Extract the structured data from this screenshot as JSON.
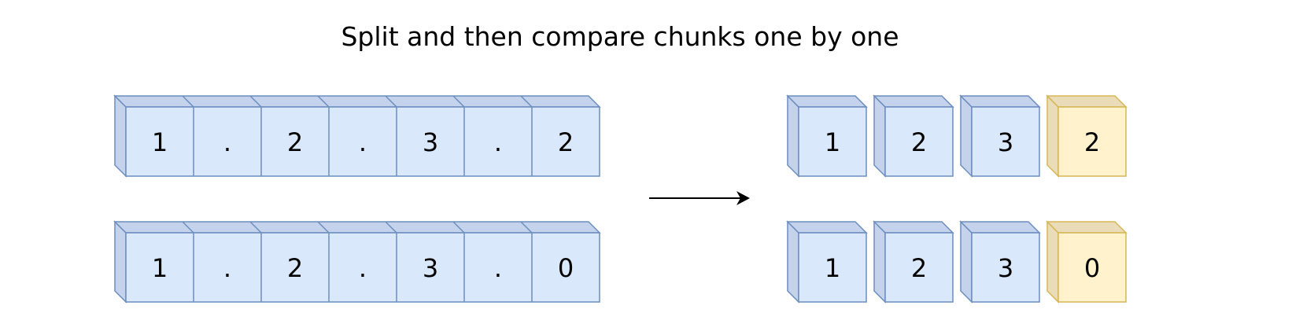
{
  "title": "Split and then compare chunks one by one",
  "colors": {
    "blue_front": "#dae8fc",
    "blue_side": "#c4d2ec",
    "blue_stroke": "#6c8ebf",
    "yellow_front": "#fff2cc",
    "yellow_side": "#eadcb8",
    "yellow_stroke": "#d6b656",
    "arrow": "#000000"
  },
  "left": {
    "rows": [
      [
        "1",
        ".",
        "2",
        ".",
        "3",
        ".",
        "2"
      ],
      [
        "1",
        ".",
        "2",
        ".",
        "3",
        ".",
        "0"
      ]
    ]
  },
  "right": {
    "rows": [
      [
        {
          "text": "1",
          "color": "blue"
        },
        {
          "text": "2",
          "color": "blue"
        },
        {
          "text": "3",
          "color": "blue"
        },
        {
          "text": "2",
          "color": "yellow"
        }
      ],
      [
        {
          "text": "1",
          "color": "blue"
        },
        {
          "text": "2",
          "color": "blue"
        },
        {
          "text": "3",
          "color": "blue"
        },
        {
          "text": "0",
          "color": "yellow"
        }
      ]
    ]
  },
  "arrow": {
    "direction": "right"
  }
}
